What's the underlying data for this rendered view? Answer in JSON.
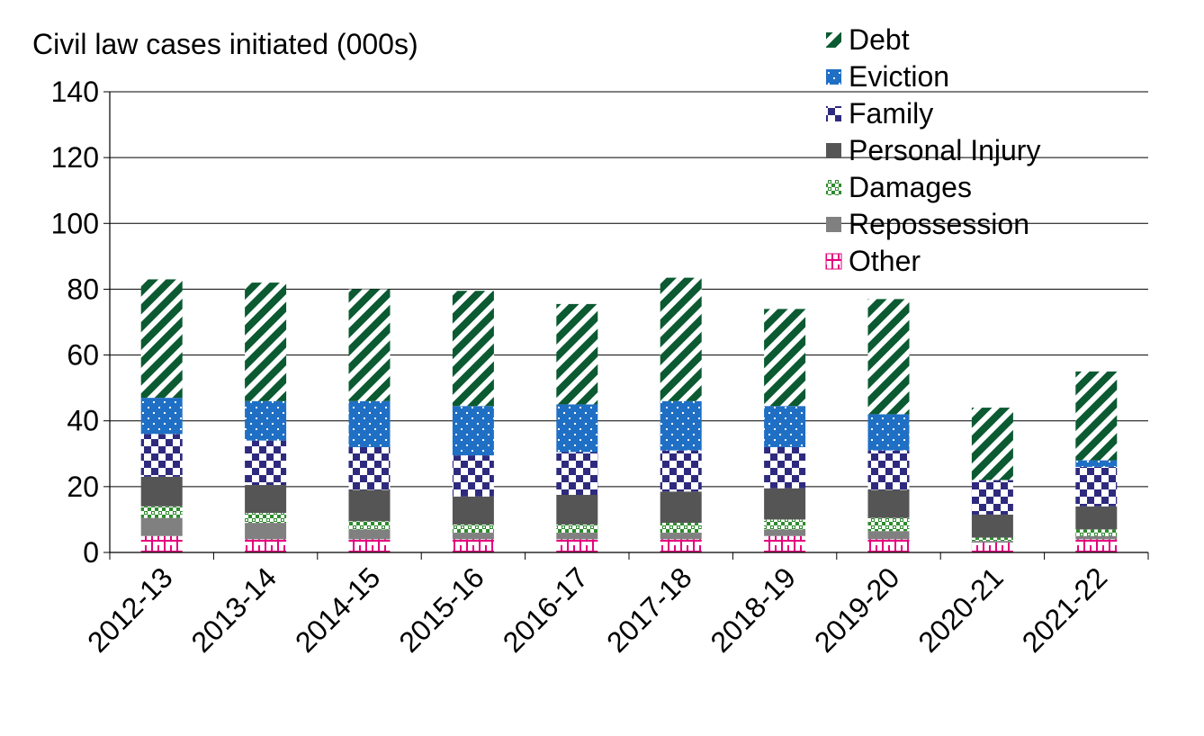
{
  "chart_data": {
    "type": "bar",
    "stacked": true,
    "title": "Civil law cases initiated (000s)",
    "categories": [
      "2012-13",
      "2013-14",
      "2014-15",
      "2015-16",
      "2016-17",
      "2017-18",
      "2018-19",
      "2019-20",
      "2020-21",
      "2021-22"
    ],
    "ylim": [
      0,
      140
    ],
    "yticks": [
      0,
      20,
      40,
      60,
      80,
      100,
      120,
      140
    ],
    "grid": true,
    "legend_position": "top-right",
    "series": [
      {
        "name": "Other",
        "color": "#e5007e",
        "pattern": "brick",
        "values": [
          5,
          4,
          4,
          4,
          4,
          4,
          5,
          4,
          3,
          4
        ]
      },
      {
        "name": "Repossession",
        "color": "#808080",
        "pattern": "solid",
        "values": [
          5.5,
          5,
          3,
          2,
          2,
          2,
          2,
          2.5,
          0.5,
          1
        ]
      },
      {
        "name": "Damages",
        "color": "#2e8b2e",
        "pattern": "grid",
        "values": [
          3.5,
          3,
          2.5,
          2.5,
          2.5,
          3,
          3,
          4,
          1,
          2
        ]
      },
      {
        "name": "Personal Injury",
        "color": "#555555",
        "pattern": "solid",
        "values": [
          9,
          8.5,
          9.5,
          8.5,
          9,
          9.5,
          9.5,
          8.5,
          7,
          7
        ]
      },
      {
        "name": "Family",
        "color": "#2e2a7e",
        "pattern": "checker",
        "values": [
          13,
          13.5,
          13,
          12.5,
          13,
          12.5,
          12.5,
          12,
          10.5,
          12
        ]
      },
      {
        "name": "Eviction",
        "color": "#1f6fc5",
        "pattern": "dots",
        "values": [
          11,
          12,
          14,
          15,
          14.5,
          15,
          12.5,
          11,
          0,
          2
        ]
      },
      {
        "name": "Debt",
        "color": "#0b5a32",
        "pattern": "diagonal",
        "values": [
          36,
          36,
          34,
          35,
          30.5,
          37.5,
          29.5,
          35,
          22,
          27
        ]
      }
    ]
  }
}
